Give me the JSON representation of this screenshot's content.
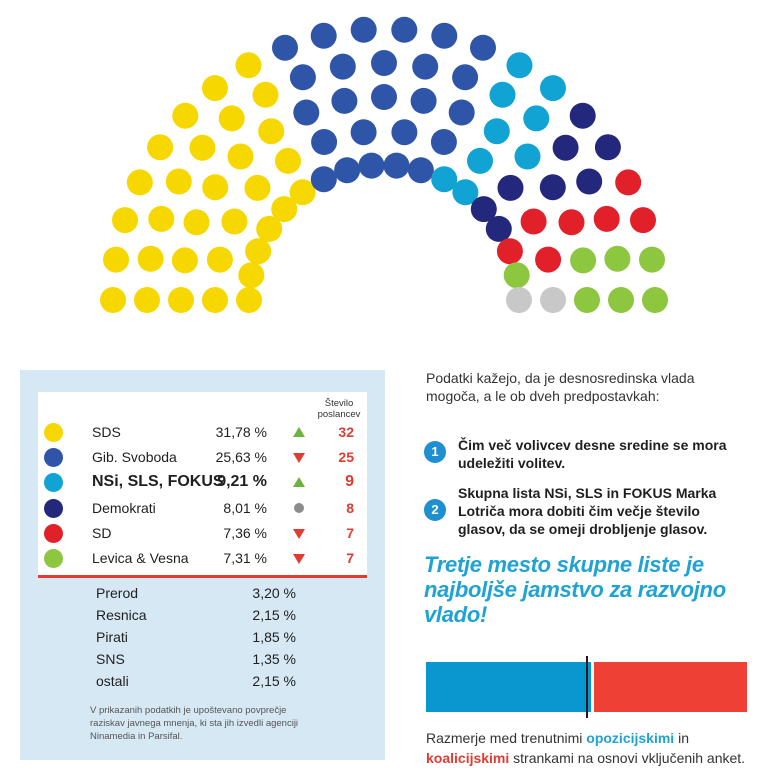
{
  "hemicycle": {
    "parties": [
      {
        "name": "SDS",
        "seats": 32,
        "color": "#f6d800"
      },
      {
        "name": "Gib. Svoboda",
        "seats": 25,
        "color": "#2e55a8"
      },
      {
        "name": "NSi, SLS, FOKUS",
        "seats": 9,
        "color": "#10a3d3"
      },
      {
        "name": "Demokrati",
        "seats": 8,
        "color": "#23287d"
      },
      {
        "name": "SD",
        "seats": 7,
        "color": "#e1202a"
      },
      {
        "name": "Levica & Vesna",
        "seats": 7,
        "color": "#8dc63f"
      },
      {
        "name": "",
        "seats": 2,
        "color": "#c8c8c8"
      }
    ]
  },
  "table": {
    "seats_header_line1": "Število",
    "seats_header_line2": "poslancev",
    "parties": [
      {
        "name": "SDS",
        "pct": "31,78 %",
        "trend": "up",
        "seats": "32",
        "color": "#f6d800"
      },
      {
        "name": "Gib. Svoboda",
        "pct": "25,63 %",
        "trend": "down",
        "seats": "25",
        "color": "#2e55a8"
      },
      {
        "name": "NSi, SLS, FOKUS",
        "pct": "9,21 %",
        "trend": "up",
        "seats": "9",
        "color": "#10a3d3"
      },
      {
        "name": "Demokrati",
        "pct": "8,01 %",
        "trend": "same",
        "seats": "8",
        "color": "#23287d"
      },
      {
        "name": "SD",
        "pct": "7,36 %",
        "trend": "down",
        "seats": "7",
        "color": "#e1202a"
      },
      {
        "name": "Levica & Vesna",
        "pct": "7,31 %",
        "trend": "down",
        "seats": "7",
        "color": "#8dc63f"
      }
    ],
    "minor": [
      {
        "name": "Prerod",
        "pct": "3,20 %"
      },
      {
        "name": "Resnica",
        "pct": "2,15 %"
      },
      {
        "name": "Pirati",
        "pct": "1,85 %"
      },
      {
        "name": "SNS",
        "pct": "1,35 %"
      },
      {
        "name": "ostali",
        "pct": "2,15 %"
      }
    ],
    "footnote": "V prikazanih podatkih je upoštevano povprečje raziskav javnega mnenja, ki sta jih izvedli agenciji Ninamedia in Parsifal."
  },
  "right": {
    "intro": "Podatki kažejo, da je desnosredinska vlada mogoča, a le ob dveh predpostavkah:",
    "conditions": [
      {
        "number": "1",
        "text": "Čim več volivcev desne sredine se mora udeležiti volitev."
      },
      {
        "number": "2",
        "text": "Skupna lista NSi, SLS in FOKUS Marka Lotriča mora dobiti čim večje število glasov, da se omeji drobljenje glasov."
      }
    ],
    "slogan": "Tretje mesto skupne liste je najboljše jamstvo za razvojno vlado!",
    "ratio": {
      "opposition_share": 0.515,
      "coalition_share": 0.485,
      "opposition_color": "#0a96cf",
      "coalition_color": "#ee4035"
    },
    "caption": {
      "part1": "Razmerje med trenutnimi ",
      "kw_opposition": "opozicijskimi",
      "part2": " in ",
      "kw_coalition": "koalicijskimi",
      "part3": " strankami na osnovi vključenih anket."
    }
  }
}
